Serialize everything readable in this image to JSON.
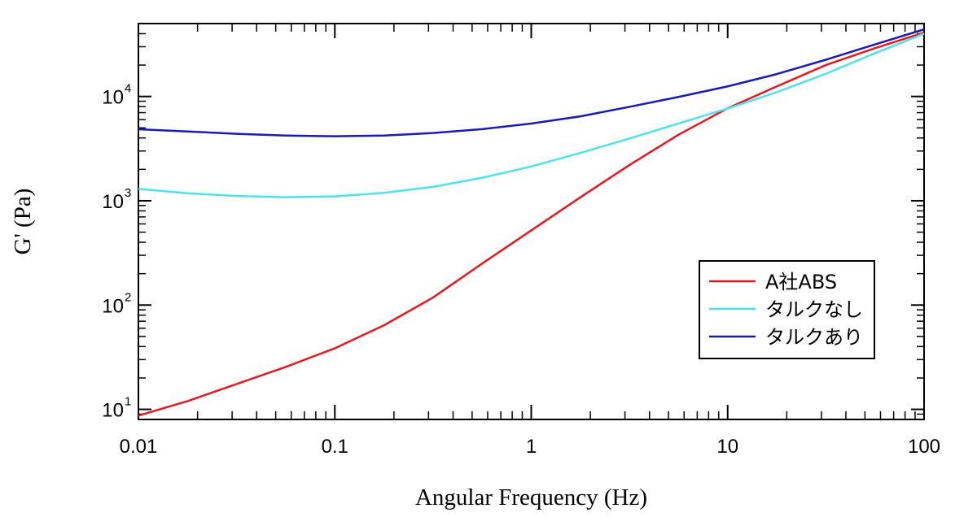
{
  "chart_data": {
    "type": "line",
    "title": "",
    "xlabel": "Angular Frequency (Hz)",
    "ylabel": "G' (Pa)",
    "x_scale": "log",
    "y_scale": "log",
    "xlim": [
      0.01,
      100
    ],
    "ylim": [
      8,
      50000
    ],
    "grid": false,
    "legend_position": "bottom-right",
    "x_ticks": [
      {
        "value": 0.01,
        "label": "0.01"
      },
      {
        "value": 0.1,
        "label": "0.1"
      },
      {
        "value": 1,
        "label": "1"
      },
      {
        "value": 10,
        "label": "10"
      },
      {
        "value": 100,
        "label": "100"
      }
    ],
    "y_ticks": [
      {
        "value": 10,
        "mantissa": "10",
        "exponent": "1"
      },
      {
        "value": 100,
        "mantissa": "10",
        "exponent": "2"
      },
      {
        "value": 1000,
        "mantissa": "10",
        "exponent": "3"
      },
      {
        "value": 10000,
        "mantissa": "10",
        "exponent": "4"
      }
    ],
    "series": [
      {
        "name": "A社ABS",
        "color": "#e8191e",
        "x": [
          0.01,
          0.0178,
          0.0316,
          0.0562,
          0.1,
          0.178,
          0.316,
          0.562,
          1,
          1.78,
          3.16,
          5.62,
          10,
          17.8,
          31.6,
          56.2,
          100
        ],
        "y": [
          8.7,
          12,
          17.5,
          25.5,
          38.5,
          64,
          118,
          250,
          520,
          1080,
          2200,
          4300,
          7700,
          12500,
          20000,
          29000,
          41000
        ]
      },
      {
        "name": "タルクなし",
        "color": "#4de3ec",
        "x": [
          0.01,
          0.0178,
          0.0316,
          0.0562,
          0.1,
          0.178,
          0.316,
          0.562,
          1,
          1.78,
          3.16,
          5.62,
          10,
          17.8,
          31.6,
          56.2,
          100
        ],
        "y": [
          1300,
          1180,
          1110,
          1080,
          1100,
          1190,
          1360,
          1660,
          2130,
          2880,
          3950,
          5500,
          7650,
          11000,
          16500,
          26000,
          40000
        ]
      },
      {
        "name": "タルクあり",
        "color": "#1a1ab5",
        "x": [
          0.01,
          0.0178,
          0.0316,
          0.0562,
          0.1,
          0.178,
          0.316,
          0.562,
          1,
          1.78,
          3.16,
          5.62,
          10,
          17.8,
          31.6,
          56.2,
          100
        ],
        "y": [
          4850,
          4620,
          4380,
          4220,
          4150,
          4220,
          4460,
          4860,
          5500,
          6450,
          7950,
          9900,
          12500,
          16400,
          22500,
          31500,
          44000
        ]
      }
    ]
  }
}
